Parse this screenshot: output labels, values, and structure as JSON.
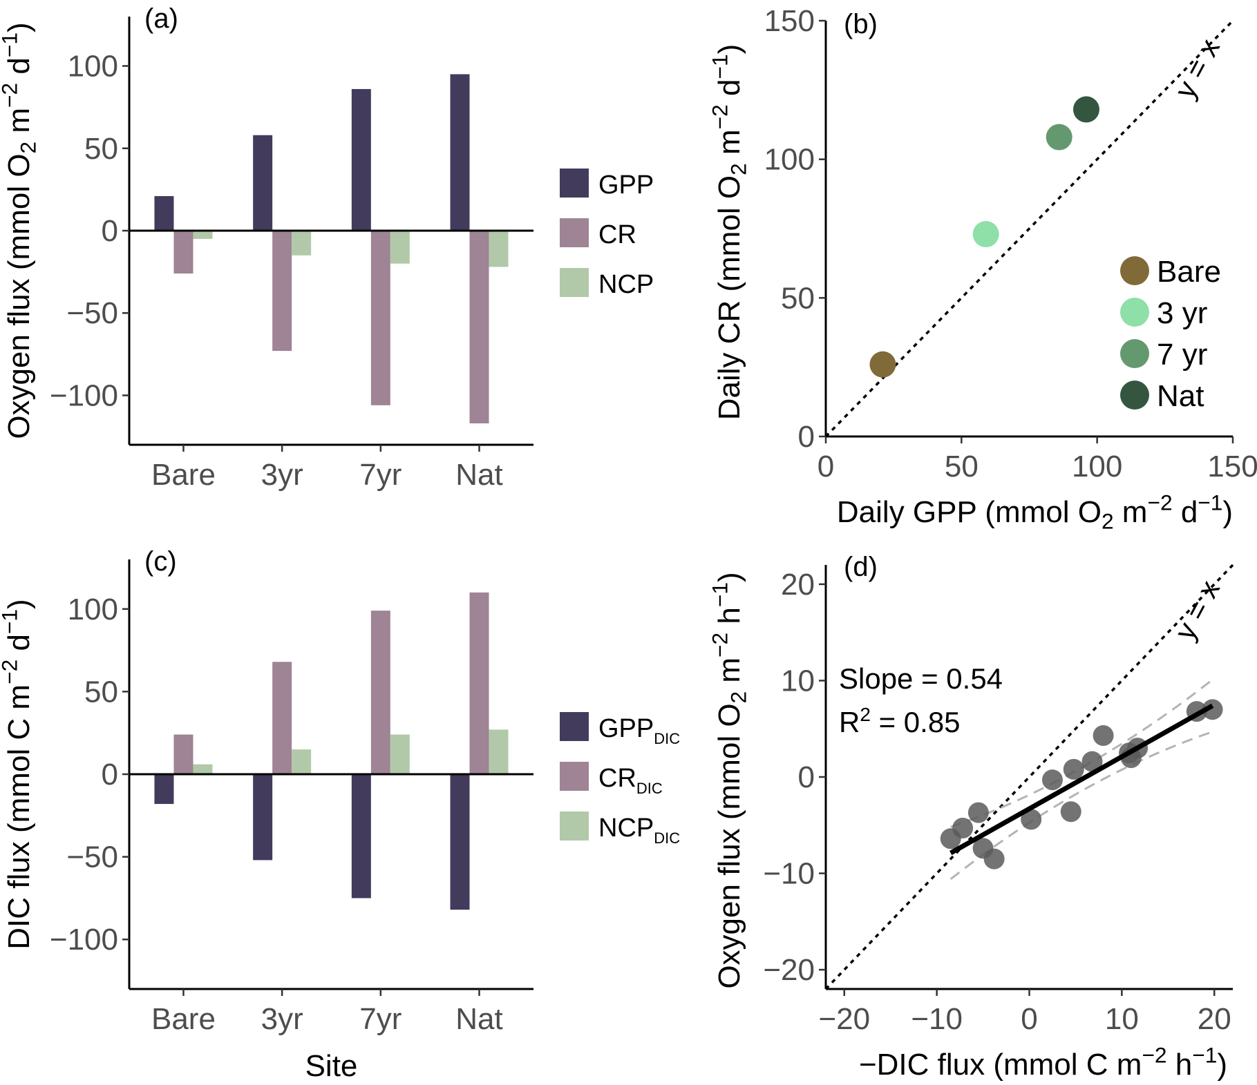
{
  "colors": {
    "gpp": "#433b5c",
    "cr": "#9e8494",
    "ncp": "#b1c9a9",
    "bare": "#806a38",
    "yr3": "#8fdfa8",
    "yr7": "#64996f",
    "nat": "#345641",
    "scatter_d": "#5a5a5a",
    "ci": "#b4b4b4"
  },
  "chart_data": [
    {
      "id": "a",
      "type": "bar",
      "panel_label": "(a)",
      "ylabel": {
        "main": "Oxygen flux",
        "unit": "(mmol O",
        "sub": "2",
        "m": " m",
        "exp1": "−2",
        "d": " d",
        "exp2": "−1",
        "close": ")"
      },
      "xlabel": "",
      "ylim": [
        -130,
        130
      ],
      "yticks": [
        100,
        50,
        0,
        -50,
        -100
      ],
      "ytick_labels": [
        "100",
        "50",
        "0",
        "−50",
        "−100"
      ],
      "categories": [
        "Bare",
        "3yr",
        "7yr",
        "Nat"
      ],
      "series": [
        {
          "name": "GPP",
          "sub": "",
          "color_key": "gpp",
          "values": [
            21,
            58,
            86,
            95
          ]
        },
        {
          "name": "CR",
          "sub": "",
          "color_key": "cr",
          "values": [
            -26,
            -73,
            -106,
            -117
          ]
        },
        {
          "name": "NCP",
          "sub": "",
          "color_key": "ncp",
          "values": [
            -5,
            -15,
            -20,
            -22
          ]
        }
      ],
      "legend": [
        {
          "label": "GPP",
          "sub": ""
        },
        {
          "label": "CR",
          "sub": ""
        },
        {
          "label": "NCP",
          "sub": ""
        }
      ]
    },
    {
      "id": "b",
      "type": "scatter",
      "panel_label": "(b)",
      "xlabel": {
        "main": "Daily GPP",
        "unit": "(mmol O",
        "sub": "2",
        "m": " m",
        "exp1": "−2",
        "d": " d",
        "exp2": "−1",
        "close": ")"
      },
      "ylabel": {
        "main": "Daily CR",
        "unit": "(mmol O",
        "sub": "2",
        "m": " m",
        "exp1": "−2",
        "d": " d",
        "exp2": "−1",
        "close": ")"
      },
      "xlim": [
        0,
        150
      ],
      "ylim": [
        0,
        150
      ],
      "xticks": [
        0,
        50,
        100,
        150
      ],
      "yticks": [
        0,
        50,
        100,
        150
      ],
      "tick_labels_x": [
        "0",
        "50",
        "100",
        "150"
      ],
      "tick_labels_y": [
        "0",
        "50",
        "100",
        "150"
      ],
      "reference_line": "y = x",
      "points": [
        {
          "label": "Bare",
          "x": 21,
          "y": 26,
          "color_key": "bare"
        },
        {
          "label": "3 yr",
          "x": 59,
          "y": 73,
          "color_key": "yr3"
        },
        {
          "label": "7 yr",
          "x": 86,
          "y": 108,
          "color_key": "yr7"
        },
        {
          "label": "Nat",
          "x": 96,
          "y": 118,
          "color_key": "nat"
        }
      ],
      "legend": [
        "Bare",
        "3 yr",
        "7 yr",
        "Nat"
      ]
    },
    {
      "id": "c",
      "type": "bar",
      "panel_label": "(c)",
      "ylabel": {
        "main": "DIC flux",
        "unit": "(mmol C m",
        "exp1": "−2",
        "d": " d",
        "exp2": "−1",
        "close": ")"
      },
      "xlabel": "Site",
      "ylim": [
        -130,
        130
      ],
      "yticks": [
        100,
        50,
        0,
        -50,
        -100
      ],
      "ytick_labels": [
        "100",
        "50",
        "0",
        "−50",
        "−100"
      ],
      "categories": [
        "Bare",
        "3yr",
        "7yr",
        "Nat"
      ],
      "series": [
        {
          "name": "GPP",
          "sub": "DIC",
          "color_key": "gpp",
          "values": [
            -18,
            -52,
            -75,
            -82
          ]
        },
        {
          "name": "CR",
          "sub": "DIC",
          "color_key": "cr",
          "values": [
            24,
            68,
            99,
            110
          ]
        },
        {
          "name": "NCP",
          "sub": "DIC",
          "color_key": "ncp",
          "values": [
            6,
            15,
            24,
            27
          ]
        }
      ],
      "legend": [
        {
          "label": "GPP",
          "sub": "DIC"
        },
        {
          "label": "CR",
          "sub": "DIC"
        },
        {
          "label": "NCP",
          "sub": "DIC"
        }
      ]
    },
    {
      "id": "d",
      "type": "scatter",
      "panel_label": "(d)",
      "xlabel": {
        "main": "−DIC flux",
        "unit": "(mmol C m",
        "exp1": "−2",
        "d": " h",
        "exp2": "−1",
        "close": ")"
      },
      "ylabel": {
        "main": "Oxygen flux",
        "unit": "(mmol O",
        "sub": "2",
        "m": " m",
        "exp1": "−2",
        "d": " h",
        "exp2": "−1",
        "close": ")"
      },
      "xlim": [
        -22,
        22
      ],
      "ylim": [
        -22,
        22
      ],
      "xticks": [
        -20,
        -10,
        0,
        10,
        20
      ],
      "yticks": [
        -20,
        -10,
        0,
        10,
        20
      ],
      "tick_labels_x": [
        "−20",
        "−10",
        "0",
        "10",
        "20"
      ],
      "tick_labels_y": [
        "−20",
        "−10",
        "0",
        "10",
        "20"
      ],
      "reference_line": "y = x",
      "annotation_slope": "Slope = 0.54",
      "annotation_r2": {
        "r": "R",
        "sup": "2",
        "rest": " = 0.85"
      },
      "regression": {
        "slope": 0.54,
        "intercept": -3.3,
        "x_range": [
          -8.5,
          19.8
        ]
      },
      "ci_band": {
        "lower_intercept_offset": -1.2,
        "upper_intercept_offset": 1.2,
        "widen": 0.06
      },
      "points": [
        {
          "x": -8.5,
          "y": -6.4
        },
        {
          "x": -7.2,
          "y": -5.3
        },
        {
          "x": -5.5,
          "y": -3.7
        },
        {
          "x": -5.0,
          "y": -7.4
        },
        {
          "x": -3.8,
          "y": -8.5
        },
        {
          "x": 0.2,
          "y": -4.4
        },
        {
          "x": 2.5,
          "y": -0.3
        },
        {
          "x": 4.5,
          "y": -3.6
        },
        {
          "x": 4.8,
          "y": 0.8
        },
        {
          "x": 6.8,
          "y": 1.6
        },
        {
          "x": 8.0,
          "y": 4.3
        },
        {
          "x": 10.8,
          "y": 2.5
        },
        {
          "x": 11.0,
          "y": 2.0
        },
        {
          "x": 11.7,
          "y": 3.0
        },
        {
          "x": 18.1,
          "y": 6.8
        },
        {
          "x": 19.8,
          "y": 7.0
        }
      ]
    }
  ]
}
